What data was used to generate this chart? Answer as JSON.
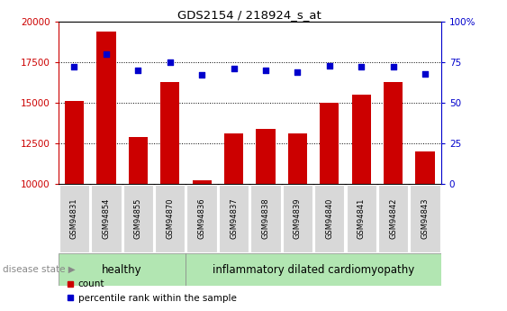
{
  "title": "GDS2154 / 218924_s_at",
  "categories": [
    "GSM94831",
    "GSM94854",
    "GSM94855",
    "GSM94870",
    "GSM94836",
    "GSM94837",
    "GSM94838",
    "GSM94839",
    "GSM94840",
    "GSM94841",
    "GSM94842",
    "GSM94843"
  ],
  "bar_values": [
    15100,
    19400,
    12900,
    16300,
    10200,
    13100,
    13400,
    13100,
    15000,
    15500,
    16300,
    12000
  ],
  "scatter_values": [
    72,
    80,
    70,
    75,
    67,
    71,
    70,
    69,
    73,
    72,
    72,
    68
  ],
  "bar_color": "#cc0000",
  "scatter_color": "#0000cc",
  "ylim_left": [
    10000,
    20000
  ],
  "ylim_right": [
    0,
    100
  ],
  "yticks_left": [
    10000,
    12500,
    15000,
    17500,
    20000
  ],
  "yticks_right": [
    0,
    25,
    50,
    75,
    100
  ],
  "healthy_count": 4,
  "disease_count": 8,
  "healthy_label": "healthy",
  "disease_label": "inflammatory dilated cardiomyopathy",
  "disease_state_label": "disease state",
  "legend_count": "count",
  "legend_percentile": "percentile rank within the sample",
  "healthy_color": "#b2e6b2",
  "disease_color": "#99dd99",
  "label_bg_color": "#d8d8d8",
  "right_axis_color": "#0000cc",
  "left_axis_color": "#cc0000"
}
